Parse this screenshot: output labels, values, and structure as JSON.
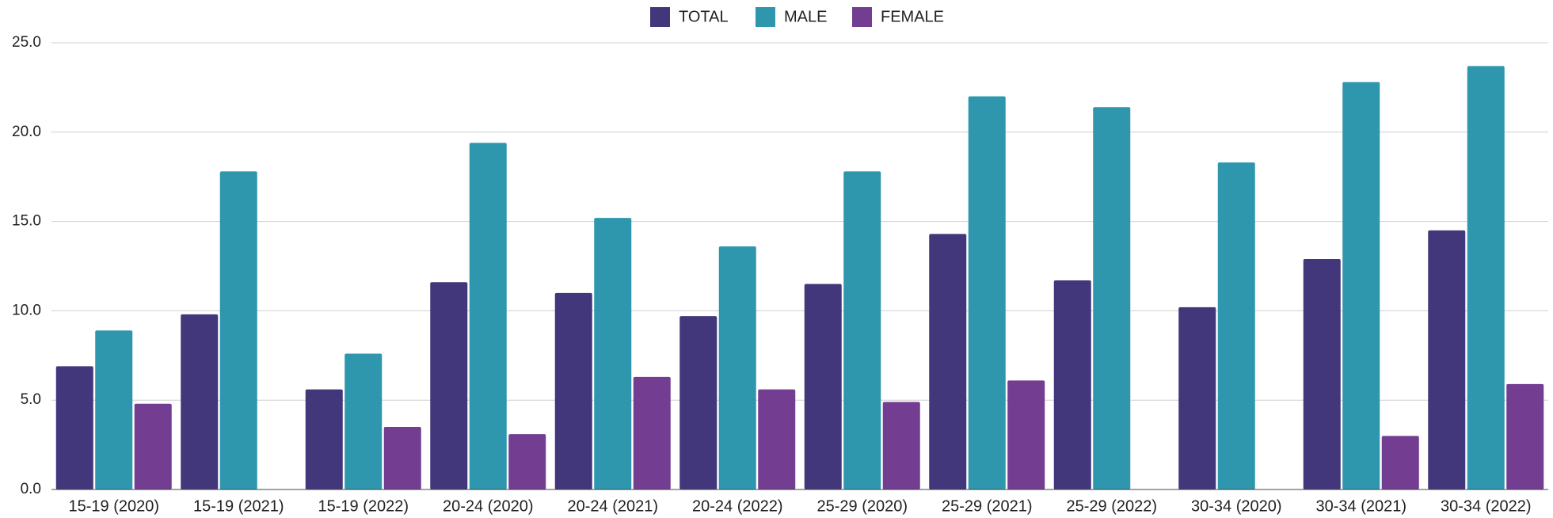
{
  "chart_data": {
    "type": "bar",
    "categories": [
      "15-19 (2020)",
      "15-19 (2021)",
      "15-19 (2022)",
      "20-24 (2020)",
      "20-24 (2021)",
      "20-24 (2022)",
      "25-29 (2020)",
      "25-29 (2021)",
      "25-29 (2022)",
      "30-34 (2020)",
      "30-34 (2021)",
      "30-34 (2022)"
    ],
    "series": [
      {
        "name": "TOTAL",
        "color": "#42377a",
        "values": [
          6.9,
          9.8,
          5.6,
          11.6,
          11.0,
          9.7,
          11.5,
          14.3,
          11.7,
          10.2,
          12.9,
          14.5
        ]
      },
      {
        "name": "MALE",
        "color": "#2e96ad",
        "values": [
          8.9,
          17.8,
          7.6,
          19.4,
          15.2,
          13.6,
          17.8,
          22.0,
          21.4,
          18.3,
          22.8,
          23.7
        ]
      },
      {
        "name": "FEMALE",
        "color": "#733d91",
        "values": [
          4.8,
          null,
          3.5,
          3.1,
          6.3,
          5.6,
          4.9,
          6.1,
          null,
          null,
          3.0,
          5.9
        ]
      }
    ],
    "ylim": [
      0,
      25
    ],
    "yticks": [
      {
        "value": 0,
        "label": "0.0"
      },
      {
        "value": 5,
        "label": "5.0"
      },
      {
        "value": 10,
        "label": "10.0"
      },
      {
        "value": 15,
        "label": "15.0"
      },
      {
        "value": 20,
        "label": "20.0"
      },
      {
        "value": 25,
        "label": "25.0"
      }
    ],
    "grid": true,
    "legend": "top"
  }
}
